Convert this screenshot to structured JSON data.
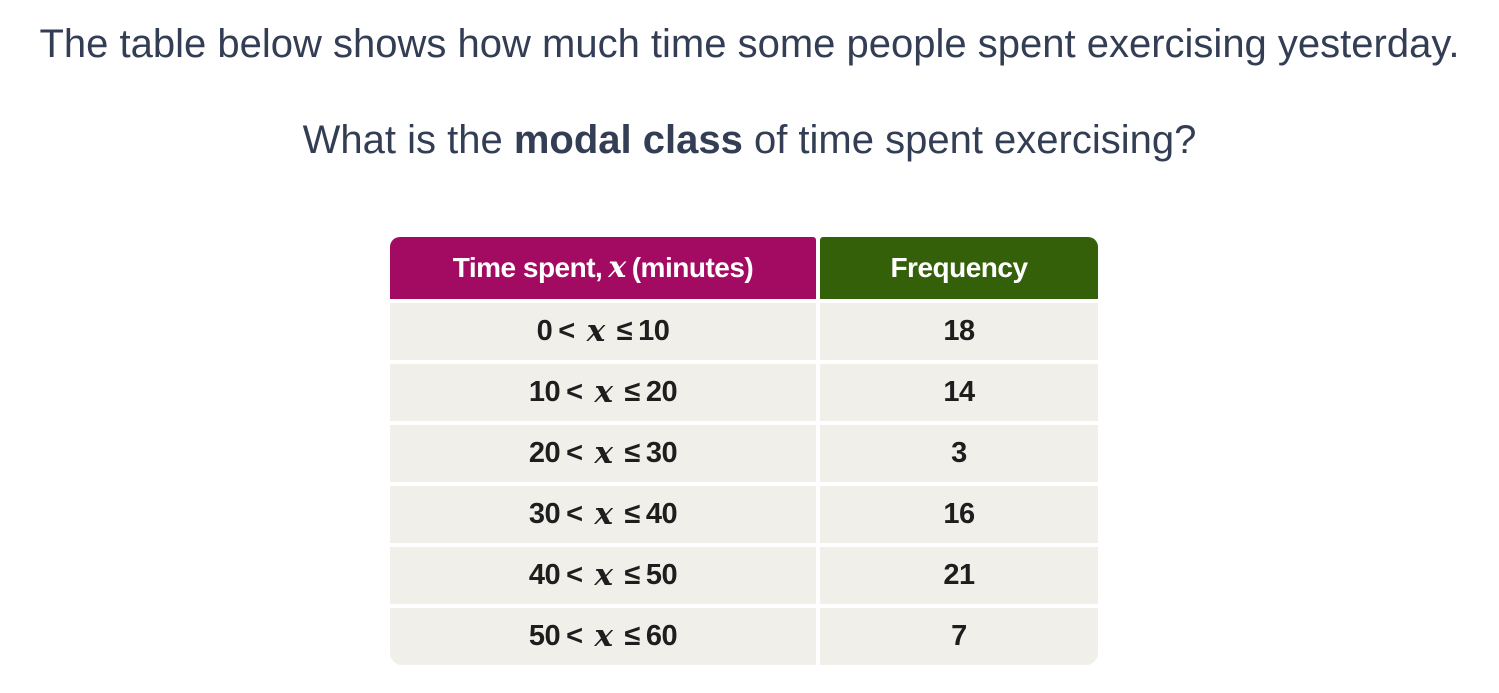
{
  "question": {
    "line1": "The table below shows how much time some people spent exercising yesterday.",
    "line2_prefix": "What is the ",
    "line2_bold": "modal class",
    "line2_suffix": " of time spent exercising?"
  },
  "table": {
    "variable": "x",
    "lt_symbol": "<",
    "leq_symbol": "≤",
    "header": {
      "col1_prefix": "Time spent, ",
      "col1_variable": "x",
      "col1_suffix": " (minutes)",
      "col2": "Frequency"
    },
    "rows": [
      {
        "lower": "0",
        "upper": "10",
        "frequency": "18"
      },
      {
        "lower": "10",
        "upper": "20",
        "frequency": "14"
      },
      {
        "lower": "20",
        "upper": "30",
        "frequency": "3"
      },
      {
        "lower": "30",
        "upper": "40",
        "frequency": "16"
      },
      {
        "lower": "40",
        "upper": "50",
        "frequency": "21"
      },
      {
        "lower": "50",
        "upper": "60",
        "frequency": "7"
      }
    ],
    "colors": {
      "header_left_bg": "#a30a62",
      "header_right_bg": "#336009",
      "row_bg": "#f1efe9",
      "header_text": "#ffffff",
      "cell_text": "#1e1e1e",
      "question_text": "#333e55"
    }
  }
}
